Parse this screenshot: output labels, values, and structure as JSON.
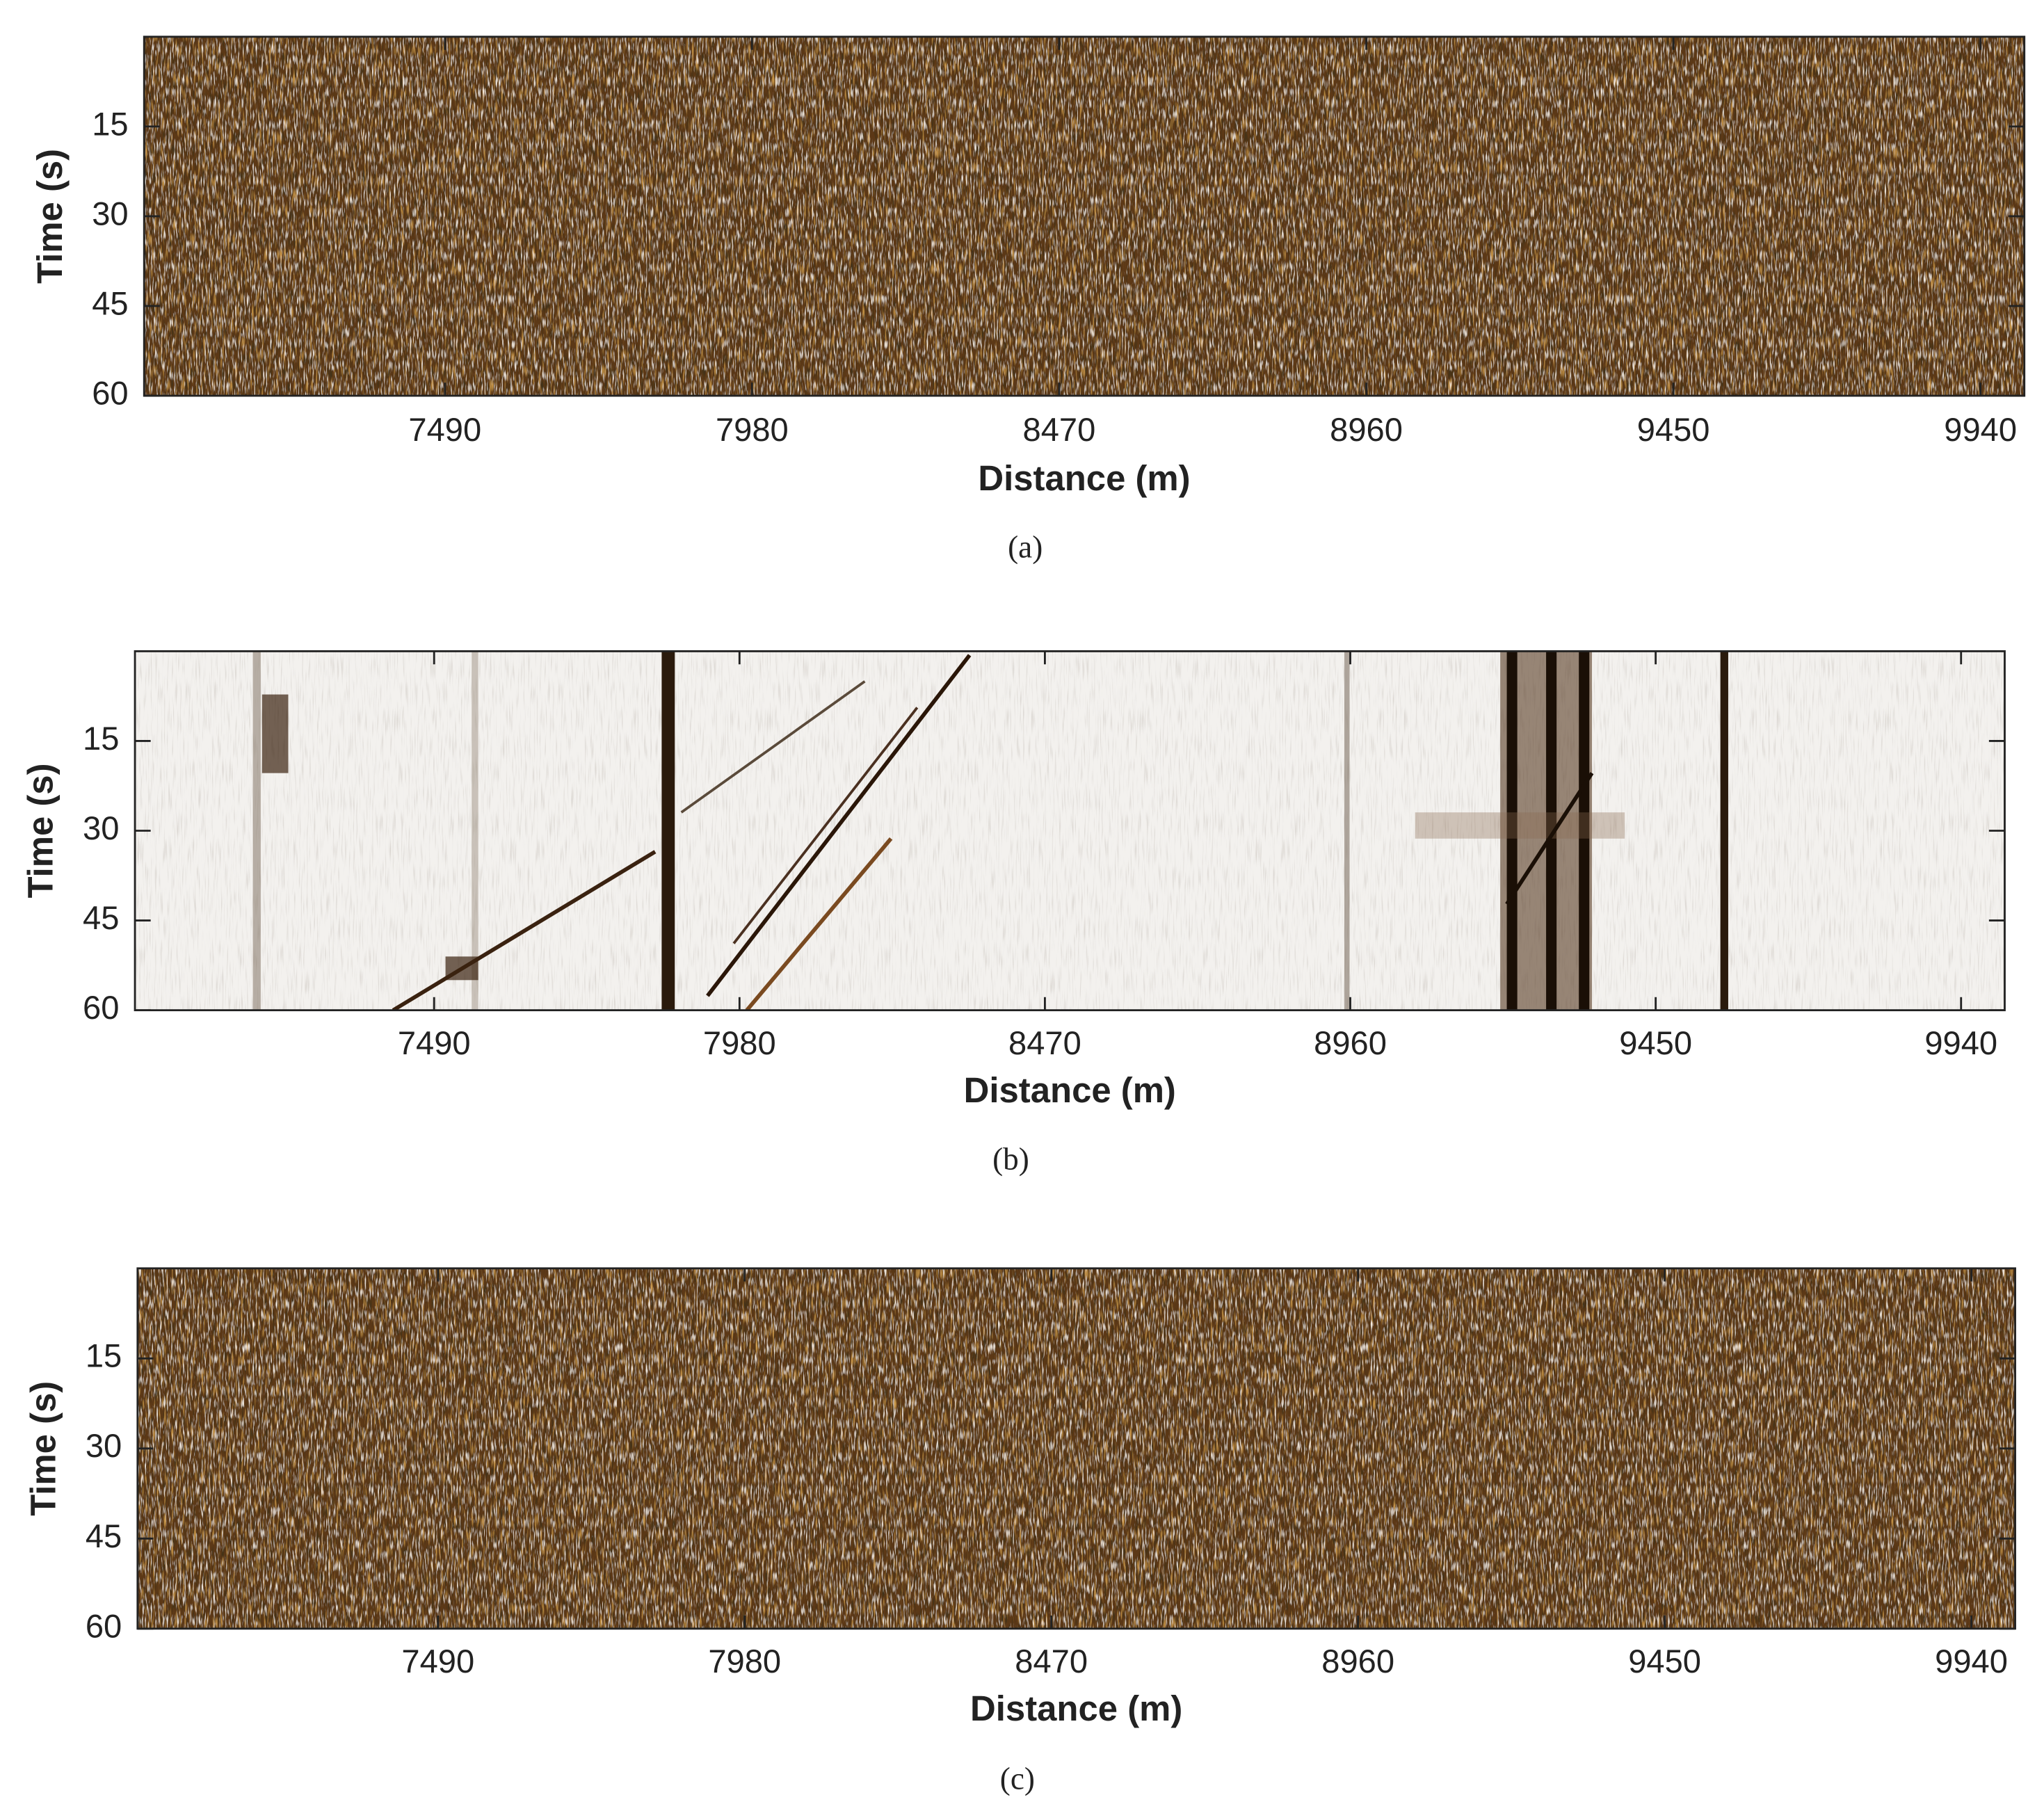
{
  "chart_data": [
    {
      "type": "heatmap",
      "title": "(a)",
      "x_label": "Distance (m)",
      "y_label": "Time (s)",
      "xlim": [
        7010,
        10010
      ],
      "xticks": [
        7490,
        7980,
        8470,
        8960,
        9450,
        9940
      ],
      "ylim": [
        0,
        60
      ],
      "yticks": [
        15,
        30,
        45,
        60
      ],
      "y_inverted": true,
      "color": "#5c3817"
    },
    {
      "type": "heatmap",
      "title": "(b)",
      "x_label": "Distance (m)",
      "y_label": "Time (s)",
      "xlim": [
        7010,
        10010
      ],
      "xticks": [
        7490,
        7980,
        8470,
        8960,
        9450,
        9940
      ],
      "ylim": [
        0,
        60
      ],
      "yticks": [
        15,
        30,
        45,
        60
      ],
      "y_inverted": true,
      "color": "#f3f1ee"
    },
    {
      "type": "heatmap",
      "title": "(c)",
      "x_label": "Distance (m)",
      "y_label": "Time (s)",
      "xlim": [
        7010,
        10010
      ],
      "xticks": [
        7490,
        7980,
        8470,
        8960,
        9450,
        9940
      ],
      "ylim": [
        0,
        60
      ],
      "yticks": [
        15,
        30,
        45,
        60
      ],
      "y_inverted": true,
      "color": "#5c3817"
    }
  ]
}
